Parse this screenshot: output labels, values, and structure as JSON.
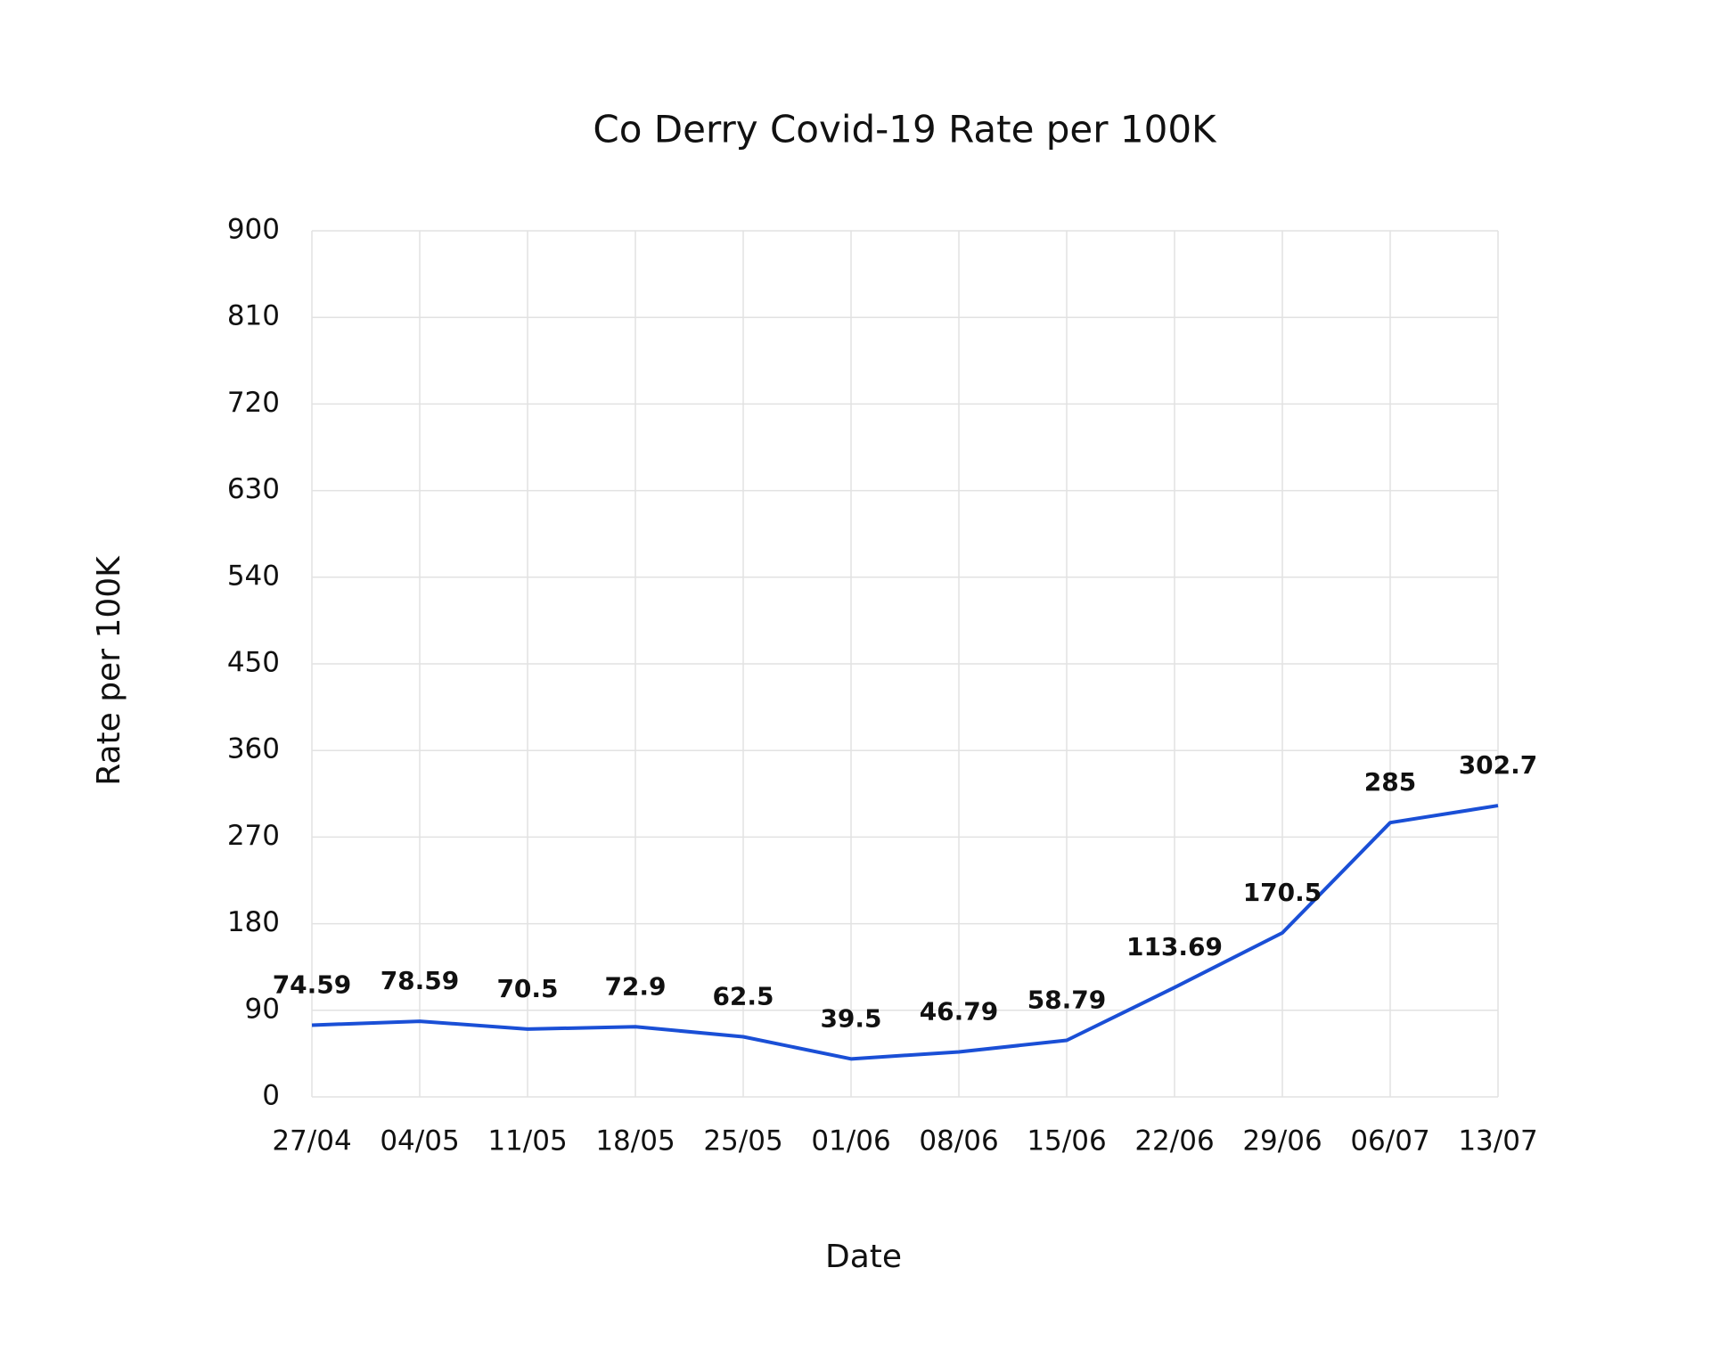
{
  "chart_data": {
    "type": "line",
    "title": "Co Derry Covid-19 Rate per 100K",
    "x_label": "Date",
    "y_label": "Rate per 100K",
    "categories": [
      "27/04",
      "04/05",
      "11/05",
      "18/05",
      "25/05",
      "01/06",
      "08/06",
      "15/06",
      "22/06",
      "29/06",
      "06/07",
      "13/07"
    ],
    "series": [
      {
        "name": "Rate per 100K",
        "color": "#1a4fd6",
        "values": [
          74.59,
          78.59,
          70.5,
          72.9,
          62.5,
          39.5,
          46.79,
          58.79,
          113.69,
          170.5,
          285,
          302.7
        ]
      }
    ],
    "ylim": [
      0,
      900
    ],
    "yticks": [
      0,
      90,
      180,
      270,
      360,
      450,
      540,
      630,
      720,
      810,
      900
    ],
    "grid": true,
    "data_labels": true
  }
}
